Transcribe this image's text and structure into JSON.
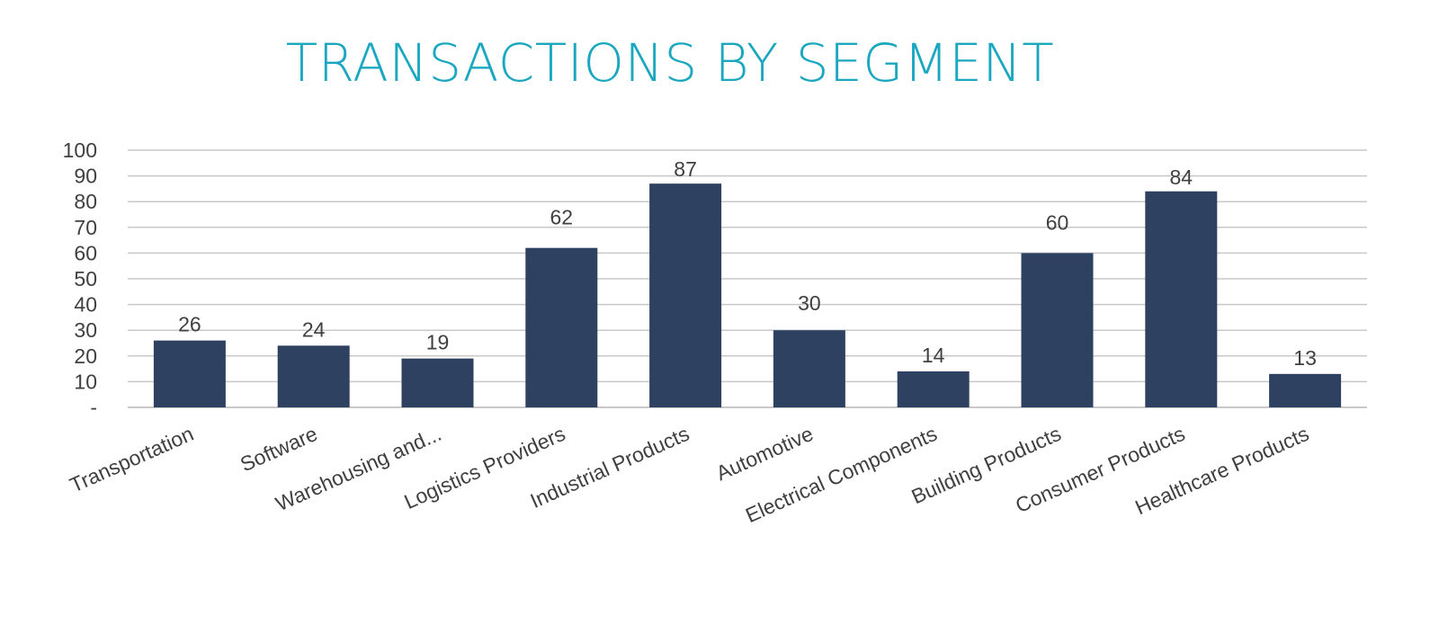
{
  "chart_data": {
    "type": "bar",
    "title": "TRANSACTIONS BY SEGMENT",
    "xlabel": "",
    "ylabel": "",
    "categories": [
      "Transportation",
      "Software",
      "Warehousing and...",
      "Logistics Providers",
      "Industrial Products",
      "Automotive",
      "Electrical Components",
      "Building Products",
      "Consumer Products",
      "Healthcare Products"
    ],
    "values": [
      26,
      24,
      19,
      62,
      87,
      30,
      14,
      60,
      84,
      13
    ],
    "y_ticks": [
      "-",
      "10",
      "20",
      "30",
      "40",
      "50",
      "60",
      "70",
      "80",
      "90",
      "100"
    ],
    "ylim": [
      0,
      100
    ],
    "grid": true,
    "legend": "none",
    "colors": {
      "bar": "#2f4160",
      "title": "#1aa7bf",
      "grid": "#c8c8c8",
      "text": "#404040"
    }
  }
}
